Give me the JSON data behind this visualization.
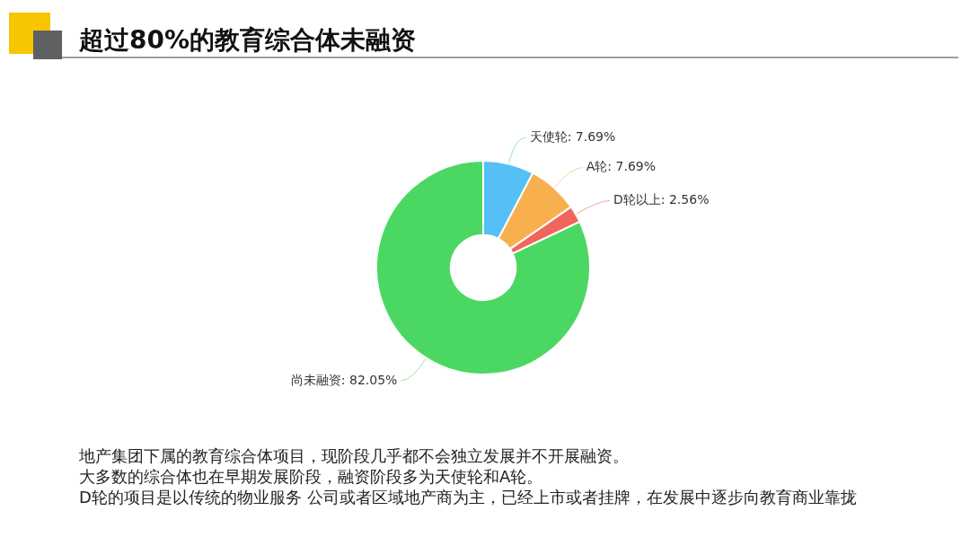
{
  "chart_data": {
    "type": "donut",
    "title": "超过80%的教育综合体未融资",
    "categories": [
      "天使轮",
      "A轮",
      "D轮以上",
      "尚未融资"
    ],
    "values": [
      7.69,
      7.69,
      2.56,
      82.05
    ],
    "colors": [
      "#56c0f6",
      "#f8b04f",
      "#f2655b",
      "#4bd862"
    ],
    "value_labels": [
      "7.69%",
      "7.69%",
      "2.56%",
      "82.05%"
    ],
    "annotations": [
      "地产集团下属的教育综合体项目，现阶段几乎都不会独立发展并不开展融资。",
      "大多数的综合体也在早期发展阶段，融资阶段多为天使轮和A轮。",
      "D轮的项目是以传统的物业服务 公司或者区域地产商为主，已经上市或者挂牌，在发展中逐步向教育商业靠拢"
    ]
  }
}
